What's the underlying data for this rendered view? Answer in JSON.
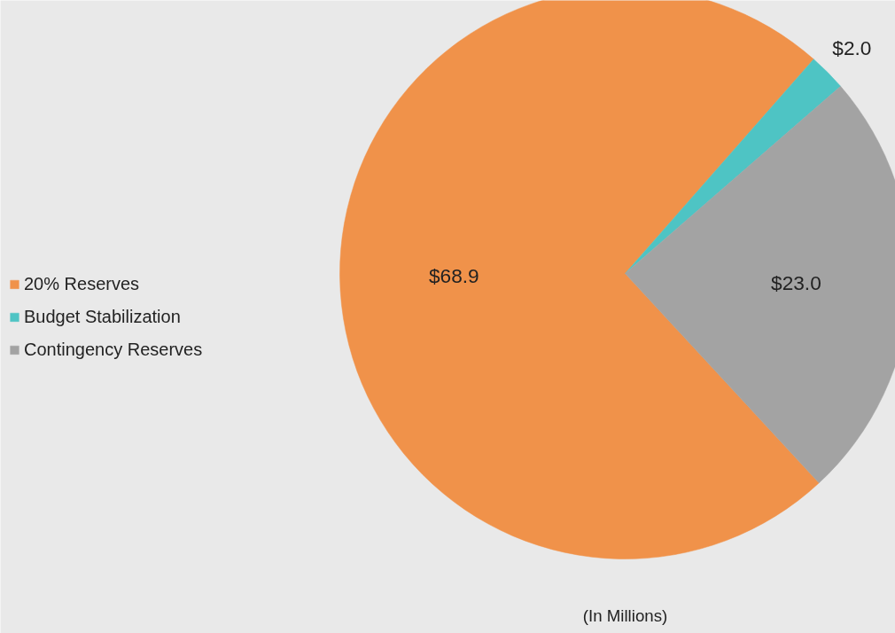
{
  "chart_data": {
    "type": "pie",
    "categories": [
      "20% Reserves",
      "Budget Stabilization",
      "Contingency Reserves"
    ],
    "values": [
      68.9,
      2.0,
      23.0
    ],
    "colors": [
      "#f0924a",
      "#4ec4c4",
      "#a3a3a3"
    ],
    "value_labels": [
      "$68.9",
      "$2.0",
      "$23.0"
    ],
    "legend": "left",
    "annotations": [
      "(In Millions)"
    ]
  }
}
